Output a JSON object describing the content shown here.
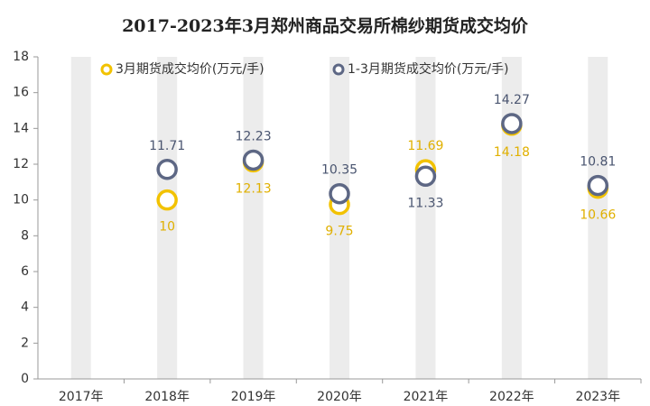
{
  "chart_data": {
    "type": "scatter",
    "title": "2017-2023年3月郑州商品交易所棉纱期货成交均价",
    "categories": [
      "2017年",
      "2018年",
      "2019年",
      "2020年",
      "2021年",
      "2022年",
      "2023年"
    ],
    "series": [
      {
        "name": "3月期货成交均价(万元/手)",
        "color": "#f2c200",
        "values": [
          null,
          10,
          12.13,
          9.75,
          11.69,
          14.18,
          10.66
        ]
      },
      {
        "name": "1-3月期货成交均价(万元/手)",
        "color": "#5d6784",
        "values": [
          null,
          11.71,
          12.23,
          10.35,
          11.33,
          14.27,
          10.81
        ]
      }
    ],
    "ylim": [
      0,
      18
    ],
    "yticks": [
      0,
      2,
      4,
      6,
      8,
      10,
      12,
      14,
      16,
      18
    ]
  }
}
